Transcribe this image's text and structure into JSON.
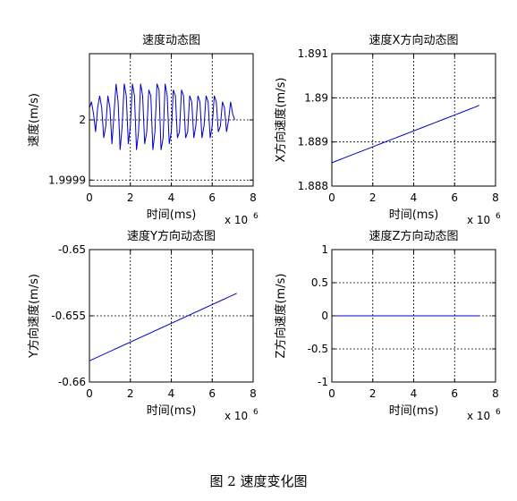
{
  "figure_caption": "图 2  速度变化图",
  "chart_data": [
    {
      "type": "line",
      "title": "速度动态图",
      "xlabel": "时间(ms)",
      "ylabel": "速度(m/s)",
      "xexp": "x 10",
      "xexp_power": "6",
      "xlim": [
        0,
        8
      ],
      "ylim": [
        1.99989,
        2.00011
      ],
      "xticks": [
        0,
        2,
        4,
        6,
        8
      ],
      "xtick_labels": [
        "0",
        "2",
        "4",
        "6",
        "8"
      ],
      "yticks": [
        1.9999,
        2
      ],
      "ytick_labels": [
        "1.9999",
        "2"
      ],
      "grid": true,
      "color": "#0000c8",
      "series": [
        {
          "x": [
            0.0,
            0.1,
            0.2,
            0.3,
            0.4,
            0.5,
            0.6,
            0.7,
            0.8,
            0.9,
            1.0,
            1.1,
            1.2,
            1.3,
            1.4,
            1.5,
            1.6,
            1.7,
            1.8,
            1.9,
            2.0,
            2.1,
            2.2,
            2.3,
            2.4,
            2.5,
            2.6,
            2.7,
            2.8,
            2.9,
            3.0,
            3.1,
            3.2,
            3.3,
            3.4,
            3.5,
            3.6,
            3.7,
            3.8,
            3.9,
            4.0,
            4.1,
            4.2,
            4.3,
            4.4,
            4.5,
            4.6,
            4.7,
            4.8,
            4.9,
            5.0,
            5.1,
            5.2,
            5.3,
            5.4,
            5.5,
            5.6,
            5.7,
            5.8,
            5.9,
            6.0,
            6.1,
            6.2,
            6.3,
            6.4,
            6.5,
            6.6,
            6.7,
            6.8,
            6.9,
            7.0,
            7.1
          ],
          "y": [
            2.00002,
            2.00003,
            2.00001,
            1.99998,
            2.00002,
            2.00004,
            2.00002,
            1.99997,
            1.99999,
            2.00004,
            2.00002,
            1.99996,
            2.00001,
            2.00006,
            2.00003,
            1.99995,
            1.99999,
            2.00006,
            2.00004,
            1.99996,
            1.99999,
            2.00006,
            2.00004,
            1.99995,
            1.99998,
            2.00006,
            2.00004,
            1.99996,
            1.99998,
            2.00005,
            2.00004,
            1.99995,
            1.99998,
            2.00006,
            2.00005,
            1.99995,
            1.99997,
            2.00006,
            2.00004,
            1.99996,
            1.99998,
            2.00005,
            2.00004,
            1.99997,
            1.99998,
            2.00005,
            2.00004,
            1.99997,
            1.99998,
            2.00004,
            2.00003,
            1.99997,
            1.99999,
            2.00004,
            2.00003,
            1.99997,
            1.99999,
            2.00004,
            2.00003,
            1.99997,
            1.99999,
            2.00004,
            2.00003,
            1.99998,
            1.99999,
            2.00003,
            2.00002,
            1.99998,
            2.0,
            2.00003,
            2.00001,
            2.0
          ]
        }
      ]
    },
    {
      "type": "line",
      "title": "速度X方向动态图",
      "xlabel": "时间(ms)",
      "ylabel": "X方向速度(m/s)",
      "xexp": "x 10",
      "xexp_power": "6",
      "xlim": [
        0,
        8
      ],
      "ylim": [
        1.888,
        1.891
      ],
      "xticks": [
        0,
        2,
        4,
        6,
        8
      ],
      "xtick_labels": [
        "0",
        "2",
        "4",
        "6",
        "8"
      ],
      "yticks": [
        1.888,
        1.889,
        1.89,
        1.891
      ],
      "ytick_labels": [
        "1.888",
        "1.889",
        "1.89",
        "1.891"
      ],
      "grid": true,
      "color": "#0000c8",
      "series": [
        {
          "x": [
            0.0,
            0.5,
            1.0,
            1.5,
            2.0,
            2.5,
            3.0,
            3.5,
            4.0,
            4.5,
            5.0,
            5.5,
            6.0,
            6.5,
            7.0,
            7.2
          ],
          "y": [
            1.88853,
            1.88862,
            1.88871,
            1.8888,
            1.88889,
            1.88898,
            1.88907,
            1.88916,
            1.88925,
            1.88934,
            1.88943,
            1.88952,
            1.88961,
            1.8897,
            1.88979,
            1.88983
          ]
        }
      ]
    },
    {
      "type": "line",
      "title": "速度Y方向动态图",
      "xlabel": "时间(ms)",
      "ylabel": "Y方向速度(m/s)",
      "xexp": "x 10",
      "xexp_power": "6",
      "xlim": [
        0,
        8
      ],
      "ylim": [
        -0.66,
        -0.65
      ],
      "xticks": [
        0,
        2,
        4,
        6,
        8
      ],
      "xtick_labels": [
        "0",
        "2",
        "4",
        "6",
        "8"
      ],
      "yticks": [
        -0.66,
        -0.655,
        -0.65
      ],
      "ytick_labels": [
        "-0.66",
        "-0.655",
        "-0.65"
      ],
      "grid": true,
      "color": "#0000c8",
      "series": [
        {
          "x": [
            0,
            7.2
          ],
          "y": [
            -0.6584,
            -0.6533
          ]
        }
      ]
    },
    {
      "type": "line",
      "title": "速度Z方向动态图",
      "xlabel": "时间(ms)",
      "ylabel": "Z方向速度(m/s)",
      "xexp": "x 10",
      "xexp_power": "6",
      "xlim": [
        0,
        8
      ],
      "ylim": [
        -1,
        1
      ],
      "xticks": [
        0,
        2,
        4,
        6,
        8
      ],
      "xtick_labels": [
        "0",
        "2",
        "4",
        "6",
        "8"
      ],
      "yticks": [
        -1,
        -0.5,
        0,
        0.5,
        1
      ],
      "ytick_labels": [
        "-1",
        "-0.5",
        "0",
        "0.5",
        "1"
      ],
      "grid": true,
      "color": "#0000c8",
      "series": [
        {
          "x": [
            0,
            7.2
          ],
          "y": [
            0,
            0
          ]
        }
      ]
    }
  ]
}
